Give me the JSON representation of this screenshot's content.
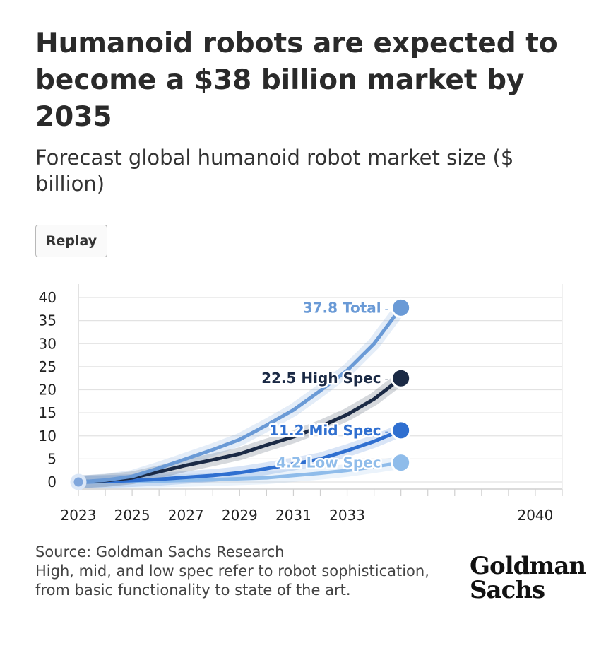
{
  "title": "Humanoid robots are expected to become a $38 billion market by 2035",
  "subtitle": "Forecast global humanoid robot market size ($ billion)",
  "replay_label": "Replay",
  "source_line": "Source: Goldman Sachs Research",
  "note_line": "High, mid, and low spec refer to robot sophistication, from basic functionality to state of the art.",
  "logo": {
    "line1": "Goldman",
    "line2": "Sachs"
  },
  "chart_data": {
    "type": "line",
    "title": "Forecast global humanoid robot market size ($ billion)",
    "xlabel": "",
    "ylabel": "",
    "xlim": [
      2023,
      2041
    ],
    "ylim": [
      0,
      40
    ],
    "grid": true,
    "x_ticks": [
      2023,
      2025,
      2027,
      2029,
      2031,
      2033,
      2040
    ],
    "y_ticks": [
      0,
      5,
      10,
      15,
      20,
      25,
      30,
      35,
      40
    ],
    "x": [
      2023,
      2024,
      2025,
      2026,
      2027,
      2028,
      2029,
      2030,
      2031,
      2032,
      2033,
      2034,
      2035
    ],
    "series": [
      {
        "name": "Total",
        "end_label": "37.8 Total",
        "color": "#6a9ad6",
        "values": [
          0,
          0.4,
          1.2,
          3.0,
          5.0,
          7.0,
          9.2,
          12.3,
          15.6,
          19.8,
          24.2,
          30.0,
          37.8
        ]
      },
      {
        "name": "High Spec",
        "end_label": "22.5 High Spec",
        "color": "#1b2a45",
        "values": [
          0,
          0.3,
          0.9,
          2.2,
          3.6,
          4.8,
          6.1,
          8.0,
          9.8,
          12.0,
          14.6,
          18.0,
          22.5
        ]
      },
      {
        "name": "Mid Spec",
        "end_label": "11.2 Mid Spec",
        "color": "#2f6fd0",
        "values": [
          0,
          0.1,
          0.3,
          0.6,
          1.0,
          1.4,
          2.0,
          2.9,
          3.9,
          5.0,
          6.8,
          8.8,
          11.2
        ]
      },
      {
        "name": "Low Spec",
        "end_label": "4.2 Low Spec",
        "color": "#8fbcea",
        "values": [
          0,
          0.05,
          0.1,
          0.2,
          0.35,
          0.5,
          0.7,
          0.9,
          1.4,
          1.9,
          2.5,
          3.3,
          4.2
        ]
      }
    ]
  }
}
